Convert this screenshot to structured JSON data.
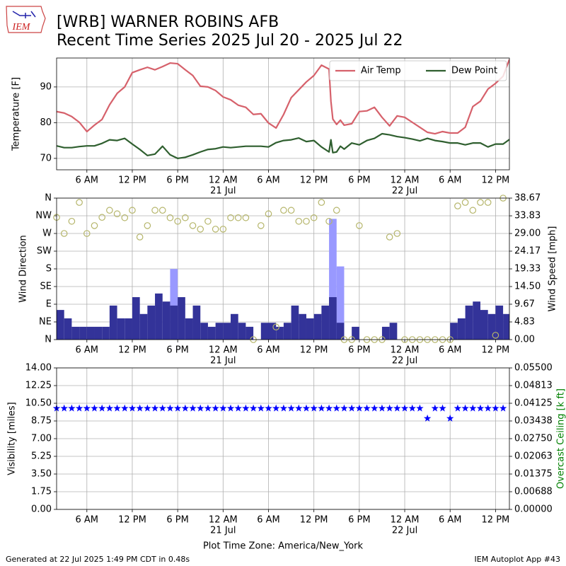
{
  "logo": "IEM",
  "title": "[WRB] WARNER ROBINS AFB",
  "subtitle": "Recent Time Series 2025 Jul 20 - 2025 Jul 22",
  "x_axis": {
    "label": "Plot Time Zone: America/New_York",
    "xlim": [
      "2025-07-20 02:00",
      "2025-07-22 13:50"
    ],
    "xticks": [
      {
        "value": "2025-07-20 06:00",
        "label": "6 AM"
      },
      {
        "value": "2025-07-20 12:00",
        "label": "12 PM"
      },
      {
        "value": "2025-07-20 18:00",
        "label": "6 PM"
      },
      {
        "value": "2025-07-21 00:00",
        "label": "12 AM"
      },
      {
        "value": "2025-07-21 06:00",
        "label": "6 AM"
      },
      {
        "value": "2025-07-21 12:00",
        "label": "12 PM"
      },
      {
        "value": "2025-07-21 18:00",
        "label": "6 PM"
      },
      {
        "value": "2025-07-22 00:00",
        "label": "12 AM"
      },
      {
        "value": "2025-07-22 06:00",
        "label": "6 AM"
      },
      {
        "value": "2025-07-22 12:00",
        "label": "12 PM"
      }
    ],
    "date_labels": [
      {
        "value": "2025-07-21 00:00",
        "label": "21 Jul"
      },
      {
        "value": "2025-07-22 00:00",
        "label": "22 Jul"
      }
    ]
  },
  "footer": {
    "generated": "Generated at 22 Jul 2025 1:49 PM CDT in 0.48s",
    "app": "IEM Autoplot App #43"
  },
  "chart_data": [
    {
      "type": "line",
      "ylabel": "Temperature [F]",
      "ylim": [
        66.8,
        98.1
      ],
      "yticks": [
        70,
        80,
        90
      ],
      "grid": true,
      "legend": "upper right",
      "x": [
        "2025-07-20 02:00",
        "2025-07-20 03:00",
        "2025-07-20 04:00",
        "2025-07-20 05:00",
        "2025-07-20 06:00",
        "2025-07-20 07:00",
        "2025-07-20 08:00",
        "2025-07-20 09:00",
        "2025-07-20 10:00",
        "2025-07-20 11:00",
        "2025-07-20 12:00",
        "2025-07-20 13:00",
        "2025-07-20 14:00",
        "2025-07-20 15:00",
        "2025-07-20 16:00",
        "2025-07-20 17:00",
        "2025-07-20 18:00",
        "2025-07-20 19:00",
        "2025-07-20 20:00",
        "2025-07-20 21:00",
        "2025-07-20 22:00",
        "2025-07-20 23:00",
        "2025-07-21 00:00",
        "2025-07-21 01:00",
        "2025-07-21 02:00",
        "2025-07-21 03:00",
        "2025-07-21 04:00",
        "2025-07-21 05:00",
        "2025-07-21 06:00",
        "2025-07-21 07:00",
        "2025-07-21 08:00",
        "2025-07-21 09:00",
        "2025-07-21 10:00",
        "2025-07-21 11:00",
        "2025-07-21 12:00",
        "2025-07-21 13:00",
        "2025-07-21 14:00",
        "2025-07-21 14:15",
        "2025-07-21 14:30",
        "2025-07-21 15:00",
        "2025-07-21 15:30",
        "2025-07-21 16:00",
        "2025-07-21 17:00",
        "2025-07-21 18:00",
        "2025-07-21 19:00",
        "2025-07-21 20:00",
        "2025-07-21 21:00",
        "2025-07-21 22:00",
        "2025-07-21 23:00",
        "2025-07-22 00:00",
        "2025-07-22 01:00",
        "2025-07-22 02:00",
        "2025-07-22 03:00",
        "2025-07-22 04:00",
        "2025-07-22 05:00",
        "2025-07-22 06:00",
        "2025-07-22 07:00",
        "2025-07-22 08:00",
        "2025-07-22 09:00",
        "2025-07-22 10:00",
        "2025-07-22 11:00",
        "2025-07-22 12:00",
        "2025-07-22 13:00",
        "2025-07-22 13:50"
      ],
      "series": [
        {
          "name": "Air Temp",
          "color": "#d6616b",
          "type": "line",
          "axis": "y",
          "values": [
            83.1,
            82.7,
            81.7,
            80.1,
            77.5,
            79.3,
            80.9,
            85,
            88.2,
            90,
            94,
            94.8,
            95.5,
            94.8,
            95.7,
            96.7,
            96.5,
            94.8,
            93.2,
            90.2,
            90,
            89,
            87.2,
            86.4,
            84.9,
            84.3,
            82.3,
            82.5,
            79.9,
            78.5,
            82.3,
            87,
            89.2,
            91.4,
            93.2,
            96.1,
            95,
            86,
            81,
            79.5,
            80.7,
            79.3,
            79.7,
            83.1,
            83.3,
            84.3,
            81.5,
            79.1,
            81.9,
            81.5,
            80.1,
            78.7,
            77.3,
            76.9,
            77.5,
            77.1,
            77.1,
            78.7,
            84.5,
            86,
            89.4,
            91,
            93,
            97.7
          ]
        },
        {
          "name": "Dew Point",
          "color": "#2f5f2f",
          "type": "line",
          "axis": "y",
          "values": [
            73.5,
            73,
            73,
            73.3,
            73.5,
            73.5,
            74.2,
            75.2,
            75,
            75.6,
            74,
            72.5,
            70.8,
            71.2,
            73.4,
            71,
            70,
            70.3,
            71,
            71.8,
            72.5,
            72.7,
            73.2,
            73,
            73.2,
            73.4,
            73.4,
            73.4,
            73.2,
            74.4,
            75,
            75.2,
            75.7,
            74.7,
            75,
            73.2,
            71.8,
            75.2,
            71.6,
            71.8,
            73.4,
            72.6,
            74.3,
            73.8,
            75,
            75.6,
            76.9,
            76.6,
            76.1,
            75.8,
            75.4,
            74.9,
            75.6,
            75,
            74.7,
            74.3,
            74.3,
            73.8,
            74.3,
            74.3,
            73.2,
            74,
            74,
            75.3
          ]
        }
      ]
    },
    {
      "type": "combo",
      "ylabel": "Wind Direction",
      "y2label": "Wind Speed [mph]",
      "ylim": [
        0,
        360
      ],
      "yticks": [
        {
          "value": 0,
          "label": "N"
        },
        {
          "value": 45,
          "label": "NE"
        },
        {
          "value": 90,
          "label": "E"
        },
        {
          "value": 135,
          "label": "SE"
        },
        {
          "value": 180,
          "label": "S"
        },
        {
          "value": 225,
          "label": "SW"
        },
        {
          "value": 270,
          "label": "W"
        },
        {
          "value": 315,
          "label": "NW"
        },
        {
          "value": 360,
          "label": "N"
        }
      ],
      "y2lim": [
        0,
        38.67
      ],
      "y2ticks": [
        {
          "value": 0,
          "label": "0.00"
        },
        4.83,
        9.67,
        {
          "value": 14.5,
          "label": "14.50"
        },
        19.33,
        24.17,
        {
          "value": 29,
          "label": "29.00"
        },
        33.83,
        38.67
      ],
      "grid": true,
      "x": [
        "2025-07-20 02:00",
        "2025-07-20 03:00",
        "2025-07-20 04:00",
        "2025-07-20 05:00",
        "2025-07-20 06:00",
        "2025-07-20 07:00",
        "2025-07-20 08:00",
        "2025-07-20 09:00",
        "2025-07-20 10:00",
        "2025-07-20 11:00",
        "2025-07-20 12:00",
        "2025-07-20 13:00",
        "2025-07-20 14:00",
        "2025-07-20 15:00",
        "2025-07-20 16:00",
        "2025-07-20 17:00",
        "2025-07-20 18:00",
        "2025-07-20 19:00",
        "2025-07-20 20:00",
        "2025-07-20 21:00",
        "2025-07-20 22:00",
        "2025-07-20 23:00",
        "2025-07-21 00:00",
        "2025-07-21 01:00",
        "2025-07-21 02:00",
        "2025-07-21 03:00",
        "2025-07-21 04:00",
        "2025-07-21 05:00",
        "2025-07-21 06:00",
        "2025-07-21 07:00",
        "2025-07-21 08:00",
        "2025-07-21 09:00",
        "2025-07-21 10:00",
        "2025-07-21 11:00",
        "2025-07-21 12:00",
        "2025-07-21 13:00",
        "2025-07-21 14:00",
        "2025-07-21 15:00",
        "2025-07-21 16:00",
        "2025-07-21 17:00",
        "2025-07-21 18:00",
        "2025-07-21 19:00",
        "2025-07-21 20:00",
        "2025-07-21 21:00",
        "2025-07-21 22:00",
        "2025-07-21 23:00",
        "2025-07-22 00:00",
        "2025-07-22 01:00",
        "2025-07-22 02:00",
        "2025-07-22 03:00",
        "2025-07-22 04:00",
        "2025-07-22 05:00",
        "2025-07-22 06:00",
        "2025-07-22 07:00",
        "2025-07-22 08:00",
        "2025-07-22 09:00",
        "2025-07-22 10:00",
        "2025-07-22 11:00",
        "2025-07-22 12:00",
        "2025-07-22 13:00"
      ],
      "series": [
        {
          "type": "bar",
          "axis": "y2",
          "color": "#9999ff",
          "values": [
            null,
            null,
            null,
            null,
            null,
            null,
            null,
            null,
            null,
            null,
            null,
            null,
            null,
            null,
            null,
            19.3,
            null,
            null,
            null,
            null,
            null,
            null,
            null,
            null,
            null,
            null,
            null,
            null,
            null,
            null,
            null,
            null,
            null,
            null,
            null,
            null,
            33,
            20,
            null,
            null,
            null,
            null,
            null,
            null,
            null,
            null,
            null,
            null,
            null,
            null,
            null,
            null,
            null,
            null,
            null,
            null,
            null,
            null,
            null,
            null
          ]
        },
        {
          "type": "bar",
          "axis": "y2",
          "color": "#333399",
          "values": [
            8.1,
            5.8,
            3.5,
            3.5,
            3.5,
            3.5,
            3.5,
            9.3,
            5.8,
            5.8,
            11.6,
            7,
            9.3,
            12.6,
            10.4,
            9.3,
            11.6,
            5.8,
            9.3,
            4.6,
            3.5,
            4.6,
            4.6,
            7,
            4.6,
            3.5,
            0,
            4.6,
            4.6,
            3.5,
            4.6,
            9.3,
            7,
            5.8,
            7,
            9.3,
            11.6,
            4.6,
            0,
            3.5,
            0,
            0,
            0,
            3.5,
            4.6,
            0,
            0,
            0,
            0,
            0,
            0,
            0,
            4.6,
            5.8,
            9.3,
            10.4,
            8.1,
            7,
            9.3,
            7
          ]
        },
        {
          "type": "scatter",
          "axis": "y",
          "color": "#b5b56a",
          "marker": "circle",
          "values": [
            311,
            270,
            301,
            349,
            270,
            290,
            311,
            329,
            320,
            310,
            329,
            261,
            290,
            329,
            329,
            310,
            301,
            310,
            290,
            281,
            301,
            281,
            281,
            310,
            310,
            310,
            0,
            290,
            320,
            32,
            329,
            329,
            301,
            301,
            310,
            349,
            301,
            329,
            0,
            0,
            290,
            0,
            0,
            0,
            261,
            270,
            0,
            0,
            0,
            0,
            0,
            0,
            0,
            340,
            349,
            329,
            349,
            349,
            11,
            360
          ]
        }
      ]
    },
    {
      "type": "scatter",
      "ylabel": "Visibility [miles]",
      "y2label": "Overcast Ceiling [k ft]",
      "y2label_color": "#008000",
      "ylim": [
        0,
        14
      ],
      "yticks": [
        {
          "value": 0,
          "label": "0.00"
        },
        1.75,
        {
          "value": 3.5,
          "label": "3.50"
        },
        5.25,
        {
          "value": 7,
          "label": "7.00"
        },
        8.75,
        {
          "value": 10.5,
          "label": "10.50"
        },
        12.25,
        {
          "value": 14,
          "label": "14.00"
        }
      ],
      "y2lim": [
        0,
        0.055
      ],
      "y2ticks": [
        {
          "value": 0,
          "label": "0.00000"
        },
        {
          "value": 0.006875,
          "label": "0.00688"
        },
        0.01375,
        {
          "value": 0.020625,
          "label": "0.02063"
        },
        {
          "value": 0.0275,
          "label": "0.02750"
        },
        {
          "value": 0.034375,
          "label": "0.03438"
        },
        0.04125,
        {
          "value": 0.048125,
          "label": "0.04813"
        },
        {
          "value": 0.055,
          "label": "0.05500"
        }
      ],
      "grid": true,
      "x": [
        "2025-07-20 02:00",
        "2025-07-20 03:00",
        "2025-07-20 04:00",
        "2025-07-20 05:00",
        "2025-07-20 06:00",
        "2025-07-20 07:00",
        "2025-07-20 08:00",
        "2025-07-20 09:00",
        "2025-07-20 10:00",
        "2025-07-20 11:00",
        "2025-07-20 12:00",
        "2025-07-20 13:00",
        "2025-07-20 14:00",
        "2025-07-20 15:00",
        "2025-07-20 16:00",
        "2025-07-20 17:00",
        "2025-07-20 18:00",
        "2025-07-20 19:00",
        "2025-07-20 20:00",
        "2025-07-20 21:00",
        "2025-07-20 22:00",
        "2025-07-20 23:00",
        "2025-07-21 00:00",
        "2025-07-21 01:00",
        "2025-07-21 02:00",
        "2025-07-21 03:00",
        "2025-07-21 04:00",
        "2025-07-21 05:00",
        "2025-07-21 06:00",
        "2025-07-21 07:00",
        "2025-07-21 08:00",
        "2025-07-21 09:00",
        "2025-07-21 10:00",
        "2025-07-21 11:00",
        "2025-07-21 12:00",
        "2025-07-21 13:00",
        "2025-07-21 14:00",
        "2025-07-21 15:00",
        "2025-07-21 16:00",
        "2025-07-21 17:00",
        "2025-07-21 18:00",
        "2025-07-21 19:00",
        "2025-07-21 20:00",
        "2025-07-21 21:00",
        "2025-07-21 22:00",
        "2025-07-21 23:00",
        "2025-07-22 00:00",
        "2025-07-22 01:00",
        "2025-07-22 02:00",
        "2025-07-22 03:00",
        "2025-07-22 04:00",
        "2025-07-22 05:00",
        "2025-07-22 06:00",
        "2025-07-22 07:00",
        "2025-07-22 08:00",
        "2025-07-22 09:00",
        "2025-07-22 10:00",
        "2025-07-22 11:00",
        "2025-07-22 12:00",
        "2025-07-22 13:00"
      ],
      "series": [
        {
          "type": "scatter",
          "axis": "y",
          "color": "#0000ff",
          "marker": "star",
          "values": [
            10,
            10,
            10,
            10,
            10,
            10,
            10,
            10,
            10,
            10,
            10,
            10,
            10,
            10,
            10,
            10,
            10,
            10,
            10,
            10,
            10,
            10,
            10,
            10,
            10,
            10,
            10,
            10,
            10,
            10,
            10,
            10,
            10,
            10,
            10,
            10,
            10,
            10,
            10,
            10,
            10,
            10,
            10,
            10,
            10,
            10,
            10,
            10,
            10,
            9,
            10,
            10,
            9,
            10,
            10,
            10,
            10,
            10,
            10,
            10
          ]
        }
      ]
    }
  ]
}
